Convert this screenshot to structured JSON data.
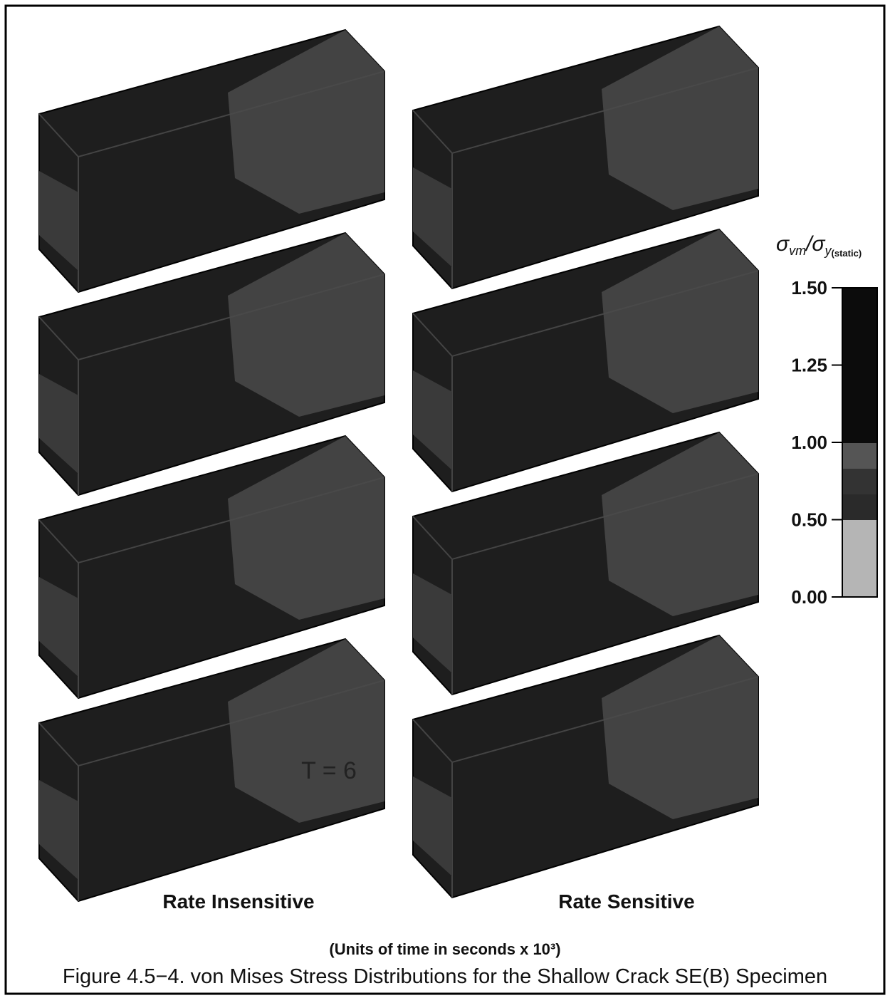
{
  "figure": {
    "panel_labels": [
      "T = 6"
    ],
    "column_labels": [
      "Rate Insensitive",
      "Rate Sensitive"
    ],
    "legend": {
      "title_main": "σ",
      "title_sub1": "vm",
      "title_sep": "/σ",
      "title_sub2": "y",
      "title_sub3": "(static)",
      "ticks": [
        {
          "value": 1.5,
          "label": "1.50"
        },
        {
          "value": 1.25,
          "label": "1.25"
        },
        {
          "value": 1,
          "label": "1.00"
        },
        {
          "value": 0.5,
          "label": "0.50"
        },
        {
          "value": 0,
          "label": "0.00"
        }
      ]
    },
    "units_note": "(Units of time in seconds x 10³)",
    "caption": "Figure 4.5−4. von Mises Stress Distributions for the Shallow Crack SE(B) Specimen"
  }
}
